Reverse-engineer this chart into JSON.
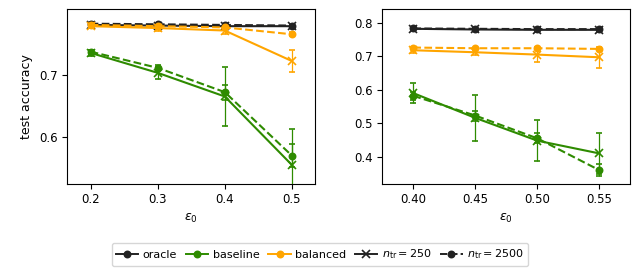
{
  "left": {
    "x": [
      0.2,
      0.3,
      0.4,
      0.5
    ],
    "xlabel": "$\\epsilon_0$",
    "ylabel": "test accuracy",
    "ylim": [
      0.525,
      0.805
    ],
    "yticks": [
      0.6,
      0.7
    ],
    "series": [
      {
        "key": "oracle_n250",
        "y": [
          0.78,
          0.779,
          0.778,
          0.778
        ],
        "yerr": [
          0.002,
          0.002,
          0.002,
          0.002
        ],
        "color": "#222222",
        "marker": "x",
        "linestyle": "-",
        "lw": 1.5
      },
      {
        "key": "oracle_n2500",
        "y": [
          0.782,
          0.781,
          0.78,
          0.779
        ],
        "yerr": [
          0.001,
          0.001,
          0.001,
          0.001
        ],
        "color": "#222222",
        "marker": "o",
        "linestyle": "--",
        "lw": 1.5
      },
      {
        "key": "balanced_n250",
        "y": [
          0.778,
          0.775,
          0.771,
          0.722
        ],
        "yerr": [
          0.003,
          0.004,
          0.005,
          0.018
        ],
        "color": "#FFA500",
        "marker": "x",
        "linestyle": "-",
        "lw": 1.5
      },
      {
        "key": "balanced_n2500",
        "y": [
          0.78,
          0.778,
          0.776,
          0.765
        ],
        "yerr": [
          0.001,
          0.001,
          0.002,
          0.003
        ],
        "color": "#FFA500",
        "marker": "o",
        "linestyle": "--",
        "lw": 1.5
      },
      {
        "key": "baseline_n250",
        "y": [
          0.735,
          0.703,
          0.665,
          0.555
        ],
        "yerr": [
          0.005,
          0.01,
          0.048,
          0.058
        ],
        "color": "#2E8B00",
        "marker": "x",
        "linestyle": "-",
        "lw": 1.5
      },
      {
        "key": "baseline_n2500",
        "y": [
          0.737,
          0.711,
          0.672,
          0.57
        ],
        "yerr": [
          0.003,
          0.005,
          0.012,
          0.018
        ],
        "color": "#2E8B00",
        "marker": "o",
        "linestyle": "--",
        "lw": 1.5
      }
    ]
  },
  "right": {
    "x": [
      0.4,
      0.45,
      0.5,
      0.55
    ],
    "xlabel": "$\\epsilon_0$",
    "ylim": [
      0.32,
      0.84
    ],
    "yticks": [
      0.4,
      0.5,
      0.6,
      0.7,
      0.8
    ],
    "series": [
      {
        "key": "oracle_n250",
        "y": [
          0.782,
          0.78,
          0.779,
          0.779
        ],
        "yerr": [
          0.002,
          0.002,
          0.002,
          0.002
        ],
        "color": "#222222",
        "marker": "x",
        "linestyle": "-",
        "lw": 1.5
      },
      {
        "key": "oracle_n2500",
        "y": [
          0.783,
          0.782,
          0.781,
          0.781
        ],
        "yerr": [
          0.001,
          0.001,
          0.001,
          0.001
        ],
        "color": "#222222",
        "marker": "o",
        "linestyle": "--",
        "lw": 1.5
      },
      {
        "key": "balanced_n250",
        "y": [
          0.718,
          0.712,
          0.705,
          0.697
        ],
        "yerr": [
          0.008,
          0.008,
          0.022,
          0.032
        ],
        "color": "#FFA500",
        "marker": "x",
        "linestyle": "-",
        "lw": 1.5
      },
      {
        "key": "balanced_n2500",
        "y": [
          0.726,
          0.724,
          0.724,
          0.722
        ],
        "yerr": [
          0.003,
          0.002,
          0.002,
          0.003
        ],
        "color": "#FFA500",
        "marker": "o",
        "linestyle": "--",
        "lw": 1.5
      },
      {
        "key": "baseline_n250",
        "y": [
          0.59,
          0.516,
          0.448,
          0.41
        ],
        "yerr": [
          0.03,
          0.068,
          0.062,
          0.062
        ],
        "color": "#2E8B00",
        "marker": "x",
        "linestyle": "-",
        "lw": 1.5
      },
      {
        "key": "baseline_n2500",
        "y": [
          0.582,
          0.523,
          0.455,
          0.36
        ],
        "yerr": [
          0.012,
          0.015,
          0.015,
          0.018
        ],
        "color": "#2E8B00",
        "marker": "o",
        "linestyle": "--",
        "lw": 1.5
      }
    ]
  },
  "legend": {
    "entries": [
      {
        "label": "oracle",
        "color": "#222222",
        "marker": "o",
        "linestyle": "-",
        "markerfacecolor": "#222222"
      },
      {
        "label": "baseline",
        "color": "#2E8B00",
        "marker": "o",
        "linestyle": "-",
        "markerfacecolor": "#2E8B00"
      },
      {
        "label": "balanced",
        "color": "#FFA500",
        "marker": "o",
        "linestyle": "-",
        "markerfacecolor": "#FFA500"
      },
      {
        "label": "$n_{\\mathrm{tr}} = 250$",
        "color": "#222222",
        "marker": "x",
        "linestyle": "-",
        "markerfacecolor": "none"
      },
      {
        "label": "$n_{\\mathrm{tr}} = 2500$",
        "color": "#222222",
        "marker": "o",
        "linestyle": "--",
        "markerfacecolor": "#222222"
      }
    ]
  }
}
